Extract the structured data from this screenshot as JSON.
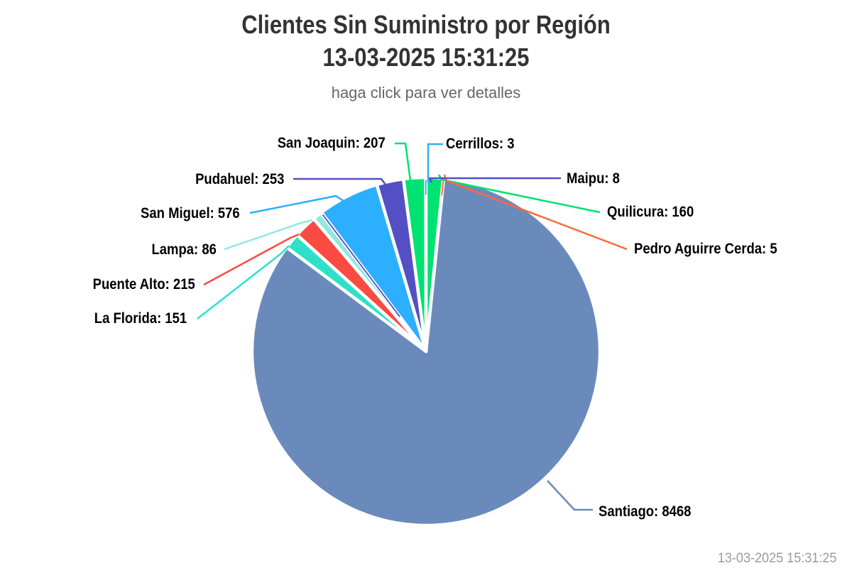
{
  "header": {
    "title_line1": "Clientes Sin Suministro por Región",
    "title_line2": "13-03-2025 15:31:25",
    "subtitle": "haga click para ver detalles"
  },
  "footer": {
    "timestamp": "13-03-2025 15:31:25"
  },
  "colors": {
    "background": "#ffffff",
    "title_text": "#333333",
    "subtitle_text": "#666666",
    "label_text": "#000000",
    "timestamp_text": "#9a9a9a",
    "slice_border": "#ffffff"
  },
  "chart_data": {
    "type": "pie",
    "title": "Clientes Sin Suministro por Región 13-03-2025 15:31:25",
    "subtitle": "haga click para ver detalles",
    "total": 10132,
    "legend": "none",
    "start_angle_deg": 0,
    "points": [
      {
        "name": "Quilicura",
        "value": 160,
        "color": "#00e272",
        "label": "Quilicura: 160",
        "label_side": "right"
      },
      {
        "name": "Pedro Aguirre Cerda",
        "value": 5,
        "color": "#fe6a35",
        "label": "Pedro Aguirre Cerda: 5",
        "label_side": "right"
      },
      {
        "name": "Santiago",
        "value": 8468,
        "color": "#6b8abc",
        "label": "Santiago: 8468",
        "label_side": "right"
      },
      {
        "name": "La Florida",
        "value": 151,
        "color": "#2ee0ca",
        "label": "La Florida: 151",
        "label_side": "left"
      },
      {
        "name": "Puente Alto",
        "value": 215,
        "color": "#fa4b42",
        "label": "Puente Alto: 215",
        "label_side": "left"
      },
      {
        "name": "Lampa",
        "value": 86,
        "color": "#91e8e1",
        "label": "Lampa: 86",
        "label_side": "left"
      },
      {
        "name": "Maipu",
        "value": 8,
        "color": "#544fc5",
        "label": "Maipu: 8",
        "label_side": "right"
      },
      {
        "name": "San Miguel",
        "value": 576,
        "color": "#2caffe",
        "label": "San Miguel: 576",
        "label_side": "left"
      },
      {
        "name": "Pudahuel",
        "value": 253,
        "color": "#544fc5",
        "label": "Pudahuel: 253",
        "label_side": "left"
      },
      {
        "name": "San Joaquin",
        "value": 207,
        "color": "#00e272",
        "label": "San Joaquin: 207",
        "label_side": "left"
      },
      {
        "name": "Cerrillos",
        "value": 3,
        "color": "#2caffe",
        "label": "Cerrillos: 3",
        "label_side": "right"
      }
    ]
  }
}
